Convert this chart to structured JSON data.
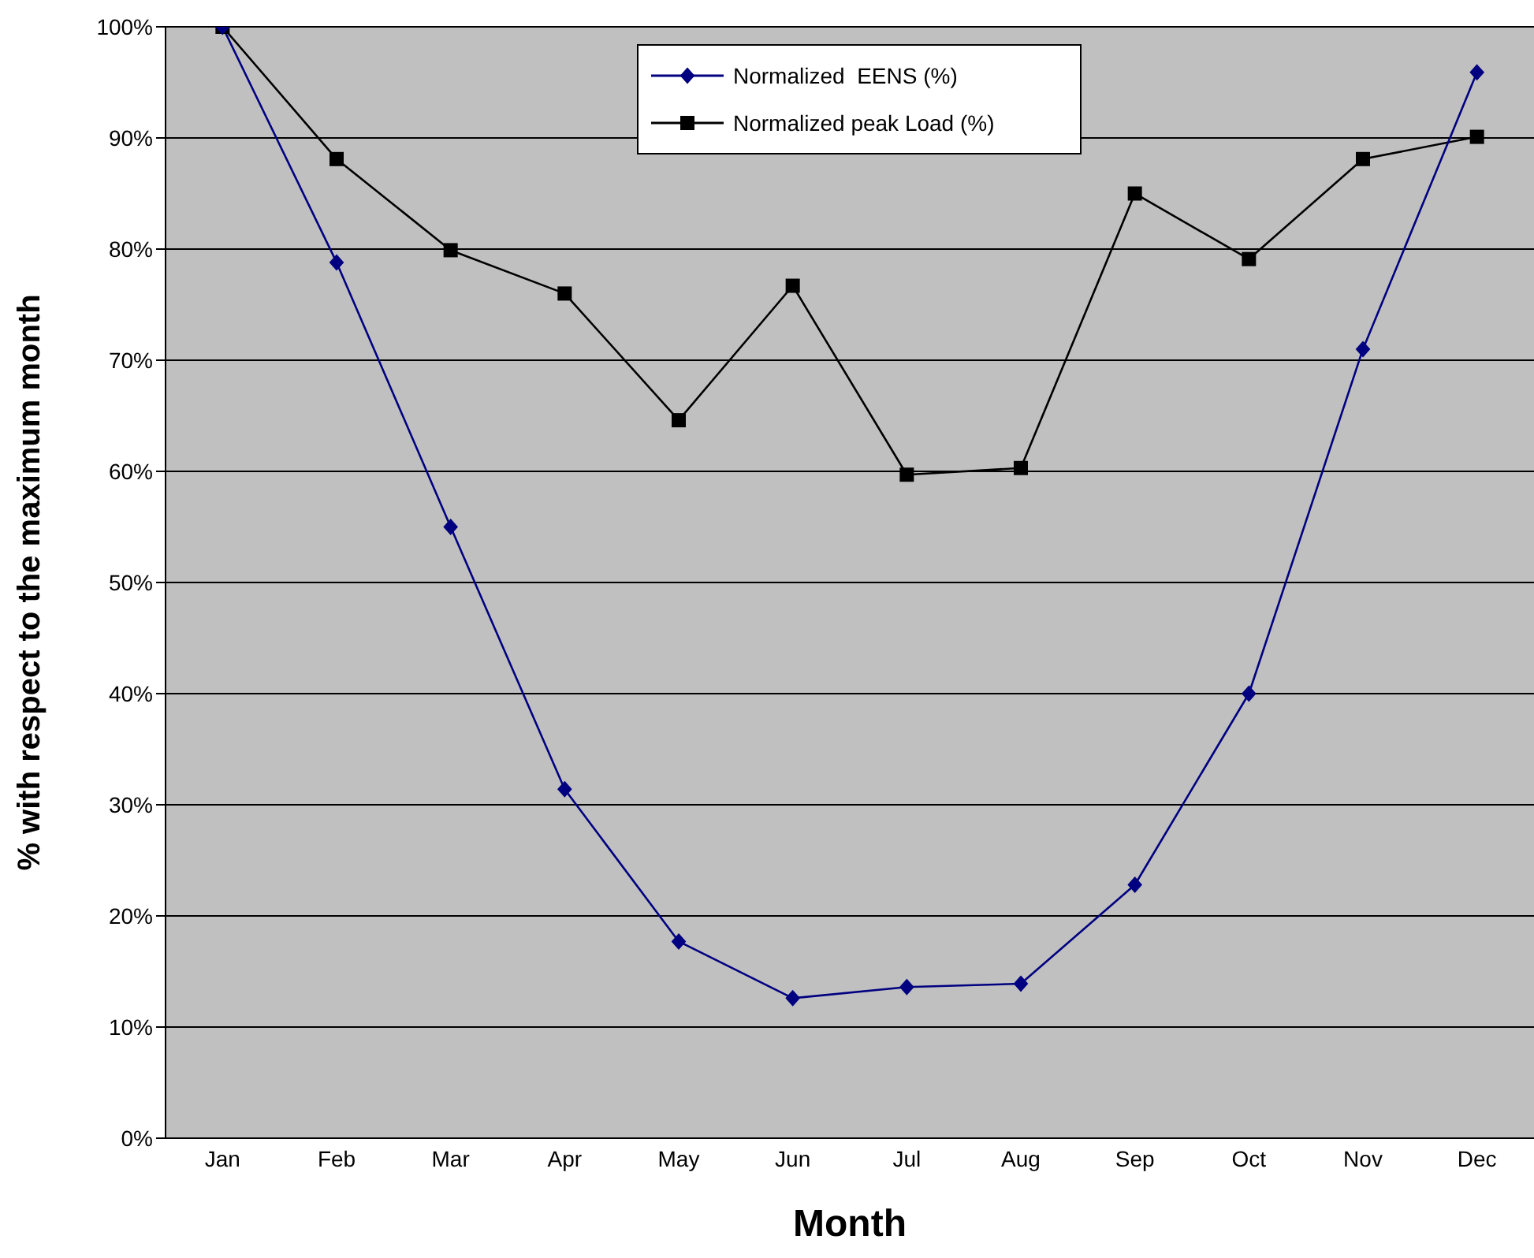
{
  "chart_data": {
    "type": "line",
    "xlabel": "Month",
    "ylabel": "% with respect to the maximum month",
    "categories": [
      "Jan",
      "Feb",
      "Mar",
      "Apr",
      "May",
      "Jun",
      "Jul",
      "Aug",
      "Sep",
      "Oct",
      "Nov",
      "Dec"
    ],
    "series": [
      {
        "name": "Normalized  EENS (%)",
        "color": "#000080",
        "marker": "diamond",
        "values": [
          100,
          78.8,
          55.0,
          31.4,
          17.7,
          12.6,
          13.6,
          13.9,
          22.8,
          40.0,
          71.0,
          95.9
        ]
      },
      {
        "name": "Normalized peak Load (%)",
        "color": "#000000",
        "marker": "square",
        "values": [
          100,
          88.1,
          79.9,
          76.0,
          64.6,
          76.7,
          59.7,
          60.3,
          85.0,
          79.1,
          88.1,
          90.1
        ]
      }
    ],
    "ylim": [
      0,
      100
    ],
    "yticks": [
      {
        "value": 0,
        "label": "0%"
      },
      {
        "value": 10,
        "label": "10%"
      },
      {
        "value": 20,
        "label": "20%"
      },
      {
        "value": 30,
        "label": "30%"
      },
      {
        "value": 40,
        "label": "40%"
      },
      {
        "value": 50,
        "label": "50%"
      },
      {
        "value": 60,
        "label": "60%"
      },
      {
        "value": 70,
        "label": "70%"
      },
      {
        "value": 80,
        "label": "80%"
      },
      {
        "value": 90,
        "label": "90%"
      },
      {
        "value": 100,
        "label": "100%"
      }
    ],
    "grid": "y",
    "legend": "top",
    "line_style": "solid"
  }
}
